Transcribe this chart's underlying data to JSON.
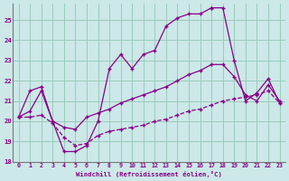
{
  "xlabel": "Windchill (Refroidissement éolien,°C)",
  "background_color": "#cce8e8",
  "line_color": "#880088",
  "xlim": [
    -0.5,
    23.5
  ],
  "ylim": [
    18,
    25.8
  ],
  "xticks": [
    0,
    1,
    2,
    3,
    4,
    5,
    6,
    7,
    8,
    9,
    10,
    11,
    12,
    13,
    14,
    15,
    16,
    17,
    18,
    19,
    20,
    21,
    22,
    23
  ],
  "yticks": [
    18,
    19,
    20,
    21,
    22,
    23,
    24,
    25
  ],
  "grid_color": "#99ccbb",
  "line1_x": [
    0,
    1,
    2,
    3,
    4,
    5,
    6,
    7,
    8,
    9,
    10,
    11,
    12,
    13,
    14,
    15,
    16,
    17
  ],
  "line1_y": [
    20.2,
    21.5,
    21.7,
    20.0,
    18.5,
    18.5,
    18.8,
    20.0,
    22.6,
    23.3,
    22.6,
    23.3,
    23.5,
    24.7,
    25.1,
    25.3,
    25.3,
    25.6
  ],
  "line1_style": "-",
  "line2_x": [
    0,
    1,
    2,
    3,
    4,
    5,
    6,
    7,
    8,
    9,
    10,
    11,
    12,
    13,
    14,
    15,
    16,
    17,
    18,
    19,
    20,
    21,
    22,
    23
  ],
  "line2_y": [
    20.2,
    20.5,
    21.5,
    20.0,
    19.7,
    19.6,
    20.2,
    20.4,
    20.6,
    20.9,
    21.1,
    21.3,
    21.5,
    21.7,
    22.0,
    22.3,
    22.5,
    22.8,
    22.8,
    22.2,
    21.3,
    21.0,
    21.8,
    21.0
  ],
  "line2_style": "-",
  "line3_x": [
    0,
    1,
    2,
    3,
    4,
    5,
    6,
    7,
    8,
    9,
    10,
    11,
    12,
    13,
    14,
    15,
    16,
    17,
    18,
    19,
    20,
    21,
    22,
    23
  ],
  "line3_y": [
    20.2,
    20.2,
    20.3,
    19.9,
    19.2,
    18.8,
    18.9,
    19.3,
    19.5,
    19.6,
    19.7,
    19.8,
    20.0,
    20.1,
    20.3,
    20.5,
    20.6,
    20.8,
    21.0,
    21.1,
    21.2,
    21.3,
    21.5,
    20.9
  ],
  "line3_style": "--",
  "line4_x": [
    17,
    18,
    19,
    20,
    21,
    22,
    23
  ],
  "line4_y": [
    25.6,
    25.6,
    23.0,
    21.0,
    21.4,
    22.1,
    20.9
  ],
  "line4_style": "-"
}
